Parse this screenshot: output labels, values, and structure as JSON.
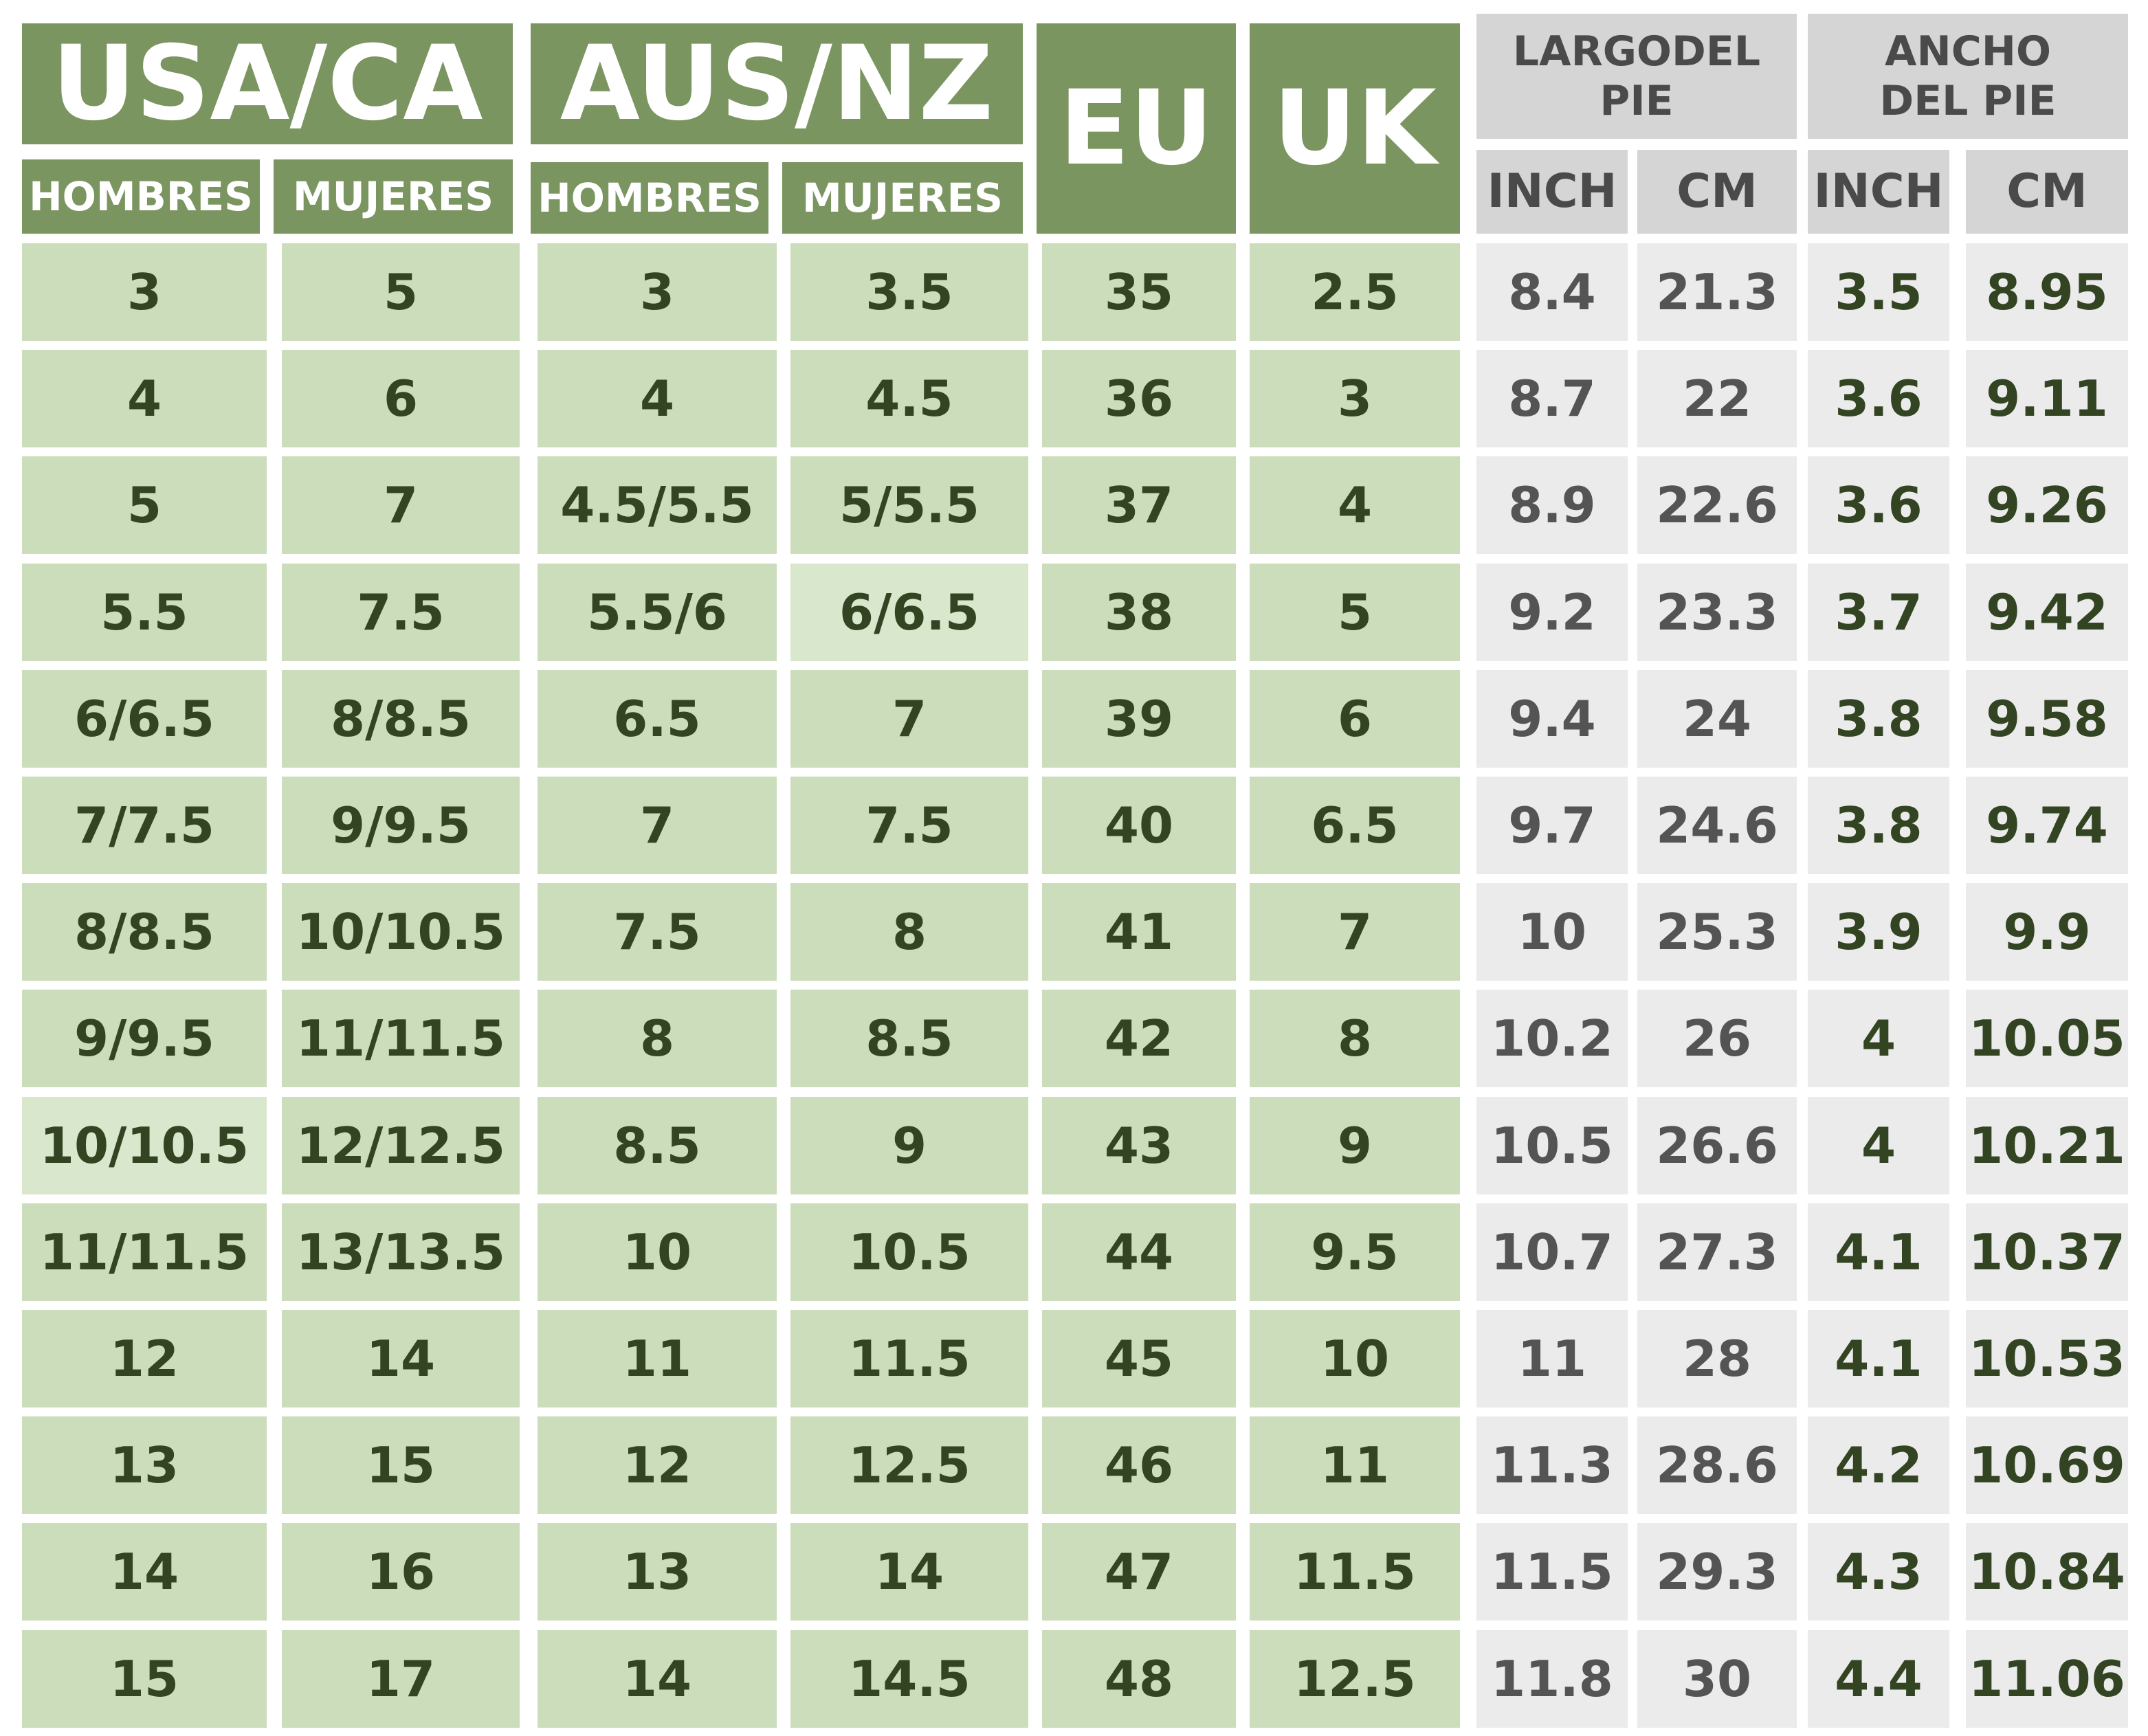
{
  "headers": {
    "usa_ca": "USA/CA",
    "aus_nz": "AUS/NZ",
    "eu": "EU",
    "uk": "UK",
    "largo": "LARGODEL PIE",
    "ancho": "ANCHO DEL PIE",
    "hombres": "HOMBRES",
    "mujeres": "MUJERES",
    "inch": "INCH",
    "cm": "CM"
  },
  "colors": {
    "header_green": "#7a9560",
    "cell_green": "#cbddbb",
    "header_grey": "#d5d5d5",
    "cell_grey": "#ebebeb",
    "text_dark_green": "#334423",
    "text_dark_grey": "#545454"
  },
  "chart_data": {
    "type": "table",
    "columns": [
      "USA/CA HOMBRES",
      "USA/CA MUJERES",
      "AUS/NZ HOMBRES",
      "AUS/NZ MUJERES",
      "EU",
      "UK",
      "LARGODEL PIE INCH",
      "LARGODEL PIE CM",
      "ANCHO DEL PIE INCH",
      "ANCHO DEL PIE CM"
    ],
    "rows": [
      [
        "3",
        "5",
        "3",
        "3.5",
        "35",
        "2.5",
        "8.4",
        "21.3",
        "3.5",
        "8.95"
      ],
      [
        "4",
        "6",
        "4",
        "4.5",
        "36",
        "3",
        "8.7",
        "22",
        "3.6",
        "9.11"
      ],
      [
        "5",
        "7",
        "4.5/5.5",
        "5/5.5",
        "37",
        "4",
        "8.9",
        "22.6",
        "3.6",
        "9.26"
      ],
      [
        "5.5",
        "7.5",
        "5.5/6",
        "6/6.5",
        "38",
        "5",
        "9.2",
        "23.3",
        "3.7",
        "9.42"
      ],
      [
        "6/6.5",
        "8/8.5",
        "6.5",
        "7",
        "39",
        "6",
        "9.4",
        "24",
        "3.8",
        "9.58"
      ],
      [
        "7/7.5",
        "9/9.5",
        "7",
        "7.5",
        "40",
        "6.5",
        "9.7",
        "24.6",
        "3.8",
        "9.74"
      ],
      [
        "8/8.5",
        "10/10.5",
        "7.5",
        "8",
        "41",
        "7",
        "10",
        "25.3",
        "3.9",
        "9.9"
      ],
      [
        "9/9.5",
        "11/11.5",
        "8",
        "8.5",
        "42",
        "8",
        "10.2",
        "26",
        "4",
        "10.05"
      ],
      [
        "10/10.5",
        "12/12.5",
        "8.5",
        "9",
        "43",
        "9",
        "10.5",
        "26.6",
        "4",
        "10.21"
      ],
      [
        "11/11.5",
        "13/13.5",
        "10",
        "10.5",
        "44",
        "9.5",
        "10.7",
        "27.3",
        "4.1",
        "10.37"
      ],
      [
        "12",
        "14",
        "11",
        "11.5",
        "45",
        "10",
        "11",
        "28",
        "4.1",
        "10.53"
      ],
      [
        "13",
        "15",
        "12",
        "12.5",
        "46",
        "11",
        "11.3",
        "28.6",
        "4.2",
        "10.69"
      ],
      [
        "14",
        "16",
        "13",
        "14",
        "47",
        "11.5",
        "11.5",
        "29.3",
        "4.3",
        "10.84"
      ],
      [
        "15",
        "17",
        "14",
        "14.5",
        "48",
        "12.5",
        "11.8",
        "30",
        "4.4",
        "11.06"
      ]
    ]
  }
}
